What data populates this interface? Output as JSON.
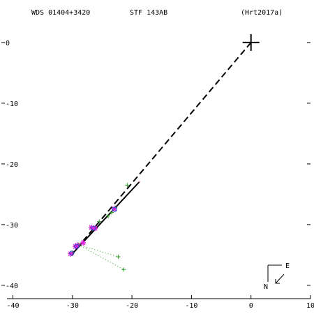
{
  "header": {
    "wds": "WDS 01404+3420",
    "discoverer": "STF 143AB",
    "reference": "(Hrt2017a)"
  },
  "compass": {
    "east_label": "E",
    "north_label": "N"
  },
  "chart_data": {
    "type": "scatter",
    "xlim": [
      -41,
      10
    ],
    "ylim": [
      -43,
      7
    ],
    "x_ticks": [
      -40,
      -30,
      -20,
      -10,
      0,
      10
    ],
    "y_ticks": [
      0,
      -10,
      -20,
      -30,
      -40
    ],
    "x_tick_labels": [
      "-40",
      "-30",
      "-20",
      "-10",
      "0",
      "10"
    ],
    "y_tick_labels": [
      "0",
      "-10",
      "-20",
      "-30",
      "-40"
    ],
    "primary": [
      0,
      0
    ],
    "orbit_line": [
      [
        -30.3,
        -35.1
      ],
      [
        -18.8,
        -23.0
      ]
    ],
    "line_of_nodes": [
      [
        0,
        0
      ],
      [
        -30.3,
        -35.1
      ]
    ],
    "series": [
      {
        "kind": "green-cross",
        "points": [
          [
            -30.1,
            -34.6
          ],
          [
            -29.0,
            -33.3
          ],
          [
            -26.8,
            -30.6
          ],
          [
            -24.0,
            -28.6
          ],
          [
            -23.4,
            -28.0
          ],
          [
            -22.8,
            -27.2
          ],
          [
            -20.8,
            -23.5
          ],
          [
            -22.3,
            -35.3
          ],
          [
            -21.4,
            -37.4
          ],
          [
            -25.5,
            -29.5
          ]
        ]
      },
      {
        "kind": "magenta-star",
        "points": [
          [
            -30.3,
            -34.8
          ],
          [
            -29.5,
            -33.6
          ],
          [
            -29.2,
            -33.4
          ],
          [
            -28.2,
            -33.0
          ],
          [
            -26.8,
            -30.5
          ],
          [
            -26.2,
            -30.6
          ],
          [
            -23.0,
            -27.4
          ]
        ]
      },
      {
        "kind": "blue-circle",
        "points": [
          [
            -30.1,
            -34.7
          ],
          [
            -29.3,
            -33.6
          ],
          [
            -26.5,
            -30.6
          ],
          [
            -22.9,
            -27.5
          ]
        ]
      }
    ],
    "residual_links": [
      [
        [
          -29.0,
          -33.3
        ],
        [
          -22.3,
          -35.3
        ]
      ],
      [
        [
          -29.0,
          -33.3
        ],
        [
          -21.4,
          -37.4
        ]
      ]
    ]
  }
}
